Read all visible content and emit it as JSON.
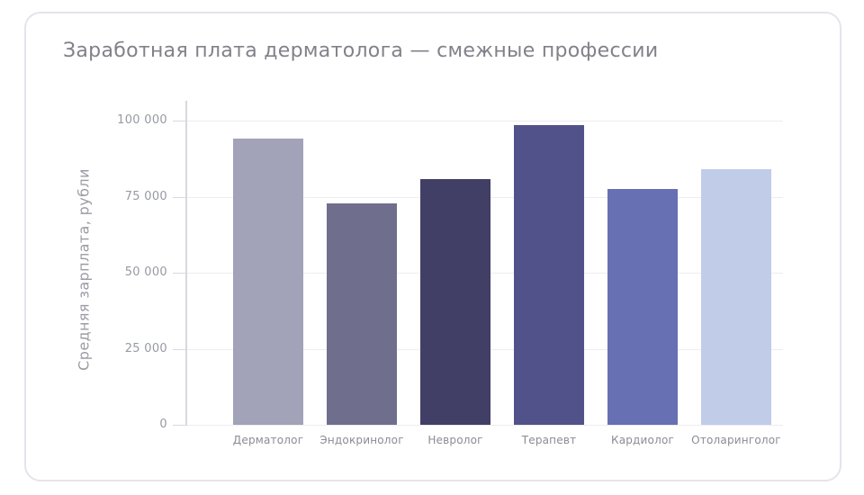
{
  "chart": {
    "title": "Заработная плата дерматолога — смежные профессии",
    "ylabel": "Средняя зарплата, рубли"
  },
  "chart_data": {
    "type": "bar",
    "title": "Заработная плата дерматолога — смежные профессии",
    "xlabel": "",
    "ylabel": "Средняя зарплата, рубли",
    "categories": [
      "Дерматолог",
      "Эндокринолог",
      "Невролог",
      "Терапевт",
      "Кардиолог",
      "Отоларинголог"
    ],
    "values": [
      94000,
      72800,
      80800,
      98500,
      77500,
      84000
    ],
    "bar_colors": [
      "#a2a2b8",
      "#6f6f8d",
      "#413f66",
      "#52528a",
      "#6670b2",
      "#c1cce9"
    ],
    "ylim": [
      0,
      100000
    ],
    "yticks": [
      0,
      25000,
      50000,
      75000,
      100000
    ],
    "ytick_labels": [
      "0",
      "25 000",
      "50 000",
      "75 000",
      "100 000"
    ],
    "grid": "horizontal-only",
    "legend": "none"
  },
  "colors": {
    "background": "#ffffff",
    "card_border": "#e4e4eb",
    "title_text": "#81818a",
    "axis_line": "#d8d8de",
    "gridline": "#ededf2",
    "tick_text": "#979aa3",
    "category_text": "#8b8b94"
  }
}
